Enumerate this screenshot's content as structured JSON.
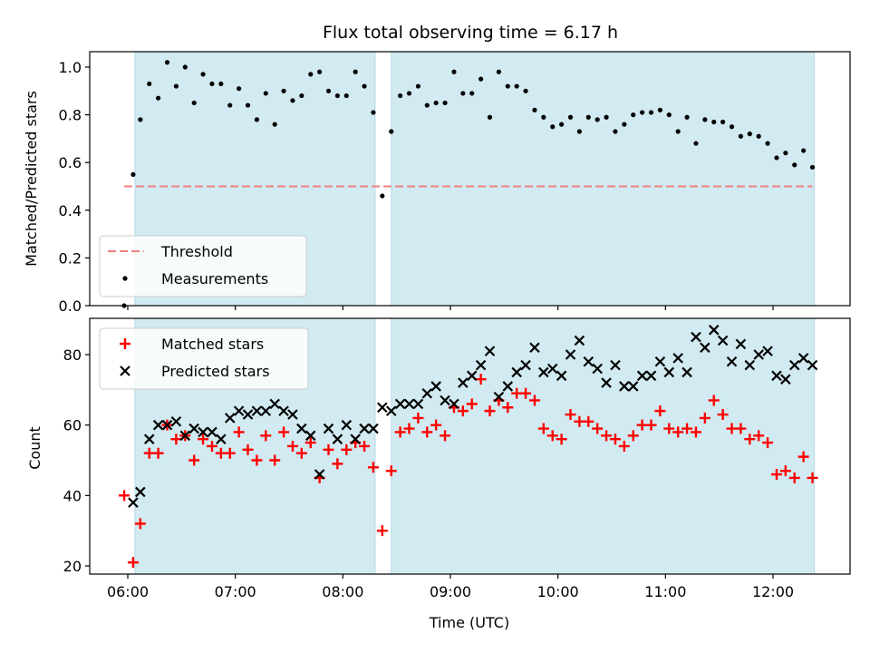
{
  "chart_data": [
    {
      "type": "scatter",
      "title": "Flux total observing time = 6.17 h",
      "ylabel": "Matched/Predicted stars",
      "ylim": [
        0,
        1.05
      ],
      "yticks": [
        "0.0",
        "0.2",
        "0.4",
        "0.6",
        "0.8",
        "1.0"
      ],
      "shaded_intervals": [
        [
          "06:04",
          "08:18"
        ],
        [
          "08:27",
          "12:23"
        ]
      ],
      "shade_color": "#add8e6",
      "legend_placement": "lower-left",
      "series": [
        {
          "name": "Threshold",
          "kind": "line",
          "style": "dashed",
          "color": "#f08080",
          "x": [
            "05:58",
            "12:22"
          ],
          "values": [
            0.5,
            0.5
          ]
        },
        {
          "name": "Measurements",
          "kind": "scatter",
          "color": "#000000",
          "x": [
            "05:58",
            "06:03",
            "06:07",
            "06:12",
            "06:17",
            "06:22",
            "06:27",
            "06:32",
            "06:37",
            "06:42",
            "06:47",
            "06:52",
            "06:57",
            "07:02",
            "07:07",
            "07:12",
            "07:17",
            "07:22",
            "07:27",
            "07:32",
            "07:37",
            "07:42",
            "07:47",
            "07:52",
            "07:57",
            "08:02",
            "08:07",
            "08:12",
            "08:17",
            "08:22",
            "08:27",
            "08:32",
            "08:37",
            "08:42",
            "08:47",
            "08:52",
            "08:57",
            "09:02",
            "09:07",
            "09:12",
            "09:17",
            "09:22",
            "09:27",
            "09:32",
            "09:37",
            "09:42",
            "09:47",
            "09:52",
            "09:57",
            "10:02",
            "10:07",
            "10:12",
            "10:17",
            "10:22",
            "10:27",
            "10:32",
            "10:37",
            "10:42",
            "10:47",
            "10:52",
            "10:57",
            "11:02",
            "11:07",
            "11:12",
            "11:17",
            "11:22",
            "11:27",
            "11:32",
            "11:37",
            "11:42",
            "11:47",
            "11:52",
            "11:57",
            "12:02",
            "12:07",
            "12:12",
            "12:17",
            "12:22"
          ],
          "values": [
            0.0,
            0.55,
            0.78,
            0.93,
            0.87,
            1.02,
            0.92,
            1.0,
            0.85,
            0.97,
            0.93,
            0.93,
            0.84,
            0.91,
            0.84,
            0.78,
            0.89,
            0.76,
            0.9,
            0.86,
            0.88,
            0.97,
            0.98,
            0.9,
            0.88,
            0.88,
            0.98,
            0.92,
            0.81,
            0.46,
            0.73,
            0.88,
            0.89,
            0.92,
            0.84,
            0.85,
            0.85,
            0.98,
            0.89,
            0.89,
            0.95,
            0.79,
            0.98,
            0.92,
            0.92,
            0.9,
            0.82,
            0.79,
            0.75,
            0.76,
            0.79,
            0.73,
            0.79,
            0.78,
            0.79,
            0.73,
            0.76,
            0.8,
            0.81,
            0.81,
            0.82,
            0.8,
            0.73,
            0.79,
            0.68,
            0.78,
            0.77,
            0.77,
            0.75,
            0.71,
            0.72,
            0.71,
            0.68,
            0.62,
            0.64,
            0.59,
            0.65,
            0.58
          ]
        }
      ]
    },
    {
      "type": "scatter",
      "xlabel": "Time (UTC)",
      "ylabel": "Count",
      "ylim": [
        18,
        90
      ],
      "yticks": [
        "20",
        "40",
        "60",
        "80"
      ],
      "xticks": [
        "06:00",
        "07:00",
        "08:00",
        "09:00",
        "10:00",
        "11:00",
        "12:00"
      ],
      "shaded_intervals": [
        [
          "06:04",
          "08:18"
        ],
        [
          "08:27",
          "12:23"
        ]
      ],
      "shade_color": "#add8e6",
      "legend_placement": "upper-left",
      "series": [
        {
          "name": "Matched stars",
          "kind": "scatter",
          "marker": "plus",
          "color": "#ff0000",
          "x": [
            "05:58",
            "06:03",
            "06:07",
            "06:12",
            "06:17",
            "06:22",
            "06:27",
            "06:32",
            "06:37",
            "06:42",
            "06:47",
            "06:52",
            "06:57",
            "07:02",
            "07:07",
            "07:12",
            "07:17",
            "07:22",
            "07:27",
            "07:32",
            "07:37",
            "07:42",
            "07:47",
            "07:52",
            "07:57",
            "08:02",
            "08:07",
            "08:12",
            "08:17",
            "08:22",
            "08:27",
            "08:32",
            "08:37",
            "08:42",
            "08:47",
            "08:52",
            "08:57",
            "09:02",
            "09:07",
            "09:12",
            "09:17",
            "09:22",
            "09:27",
            "09:32",
            "09:37",
            "09:42",
            "09:47",
            "09:52",
            "09:57",
            "10:02",
            "10:07",
            "10:12",
            "10:17",
            "10:22",
            "10:27",
            "10:32",
            "10:37",
            "10:42",
            "10:47",
            "10:52",
            "10:57",
            "11:02",
            "11:07",
            "11:12",
            "11:17",
            "11:22",
            "11:27",
            "11:32",
            "11:37",
            "11:42",
            "11:47",
            "11:52",
            "11:57",
            "12:02",
            "12:07",
            "12:12",
            "12:17",
            "12:22"
          ],
          "values": [
            40,
            21,
            32,
            52,
            52,
            60,
            56,
            57,
            50,
            56,
            54,
            52,
            52,
            58,
            53,
            50,
            57,
            50,
            58,
            54,
            52,
            55,
            45,
            53,
            49,
            53,
            55,
            54,
            48,
            30,
            47,
            58,
            59,
            62,
            58,
            60,
            57,
            65,
            64,
            66,
            73,
            64,
            67,
            65,
            69,
            69,
            67,
            59,
            57,
            56,
            63,
            61,
            61,
            59,
            57,
            56,
            54,
            57,
            60,
            60,
            64,
            59,
            58,
            59,
            58,
            62,
            67,
            63,
            59,
            59,
            56,
            57,
            55,
            46,
            47,
            45,
            51,
            45
          ]
        },
        {
          "name": "Predicted stars",
          "kind": "scatter",
          "marker": "x",
          "color": "#000000",
          "x": [
            "06:03",
            "06:07",
            "06:12",
            "06:17",
            "06:22",
            "06:27",
            "06:32",
            "06:37",
            "06:42",
            "06:47",
            "06:52",
            "06:57",
            "07:02",
            "07:07",
            "07:12",
            "07:17",
            "07:22",
            "07:27",
            "07:32",
            "07:37",
            "07:42",
            "07:47",
            "07:52",
            "07:57",
            "08:02",
            "08:07",
            "08:12",
            "08:17",
            "08:22",
            "08:27",
            "08:32",
            "08:37",
            "08:42",
            "08:47",
            "08:52",
            "08:57",
            "09:02",
            "09:07",
            "09:12",
            "09:17",
            "09:22",
            "09:27",
            "09:32",
            "09:37",
            "09:42",
            "09:47",
            "09:52",
            "09:57",
            "10:02",
            "10:07",
            "10:12",
            "10:17",
            "10:22",
            "10:27",
            "10:32",
            "10:37",
            "10:42",
            "10:47",
            "10:52",
            "10:57",
            "11:02",
            "11:07",
            "11:12",
            "11:17",
            "11:22",
            "11:27",
            "11:32",
            "11:37",
            "11:42",
            "11:47",
            "11:52",
            "11:57",
            "12:02",
            "12:07",
            "12:12",
            "12:17",
            "12:22"
          ],
          "values": [
            38,
            41,
            56,
            60,
            60,
            61,
            57,
            59,
            58,
            58,
            56,
            62,
            64,
            63,
            64,
            64,
            66,
            64,
            63,
            59,
            57,
            46,
            59,
            56,
            60,
            56,
            59,
            59,
            65,
            64,
            66,
            66,
            66,
            69,
            71,
            67,
            66,
            72,
            74,
            77,
            81,
            68,
            71,
            75,
            77,
            82,
            75,
            76,
            74,
            80,
            84,
            78,
            76,
            72,
            77,
            71,
            71,
            74,
            74,
            78,
            75,
            79,
            75,
            85,
            82,
            87,
            84,
            78,
            83,
            77,
            80,
            81,
            74,
            73,
            77,
            79,
            77
          ]
        }
      ]
    }
  ]
}
